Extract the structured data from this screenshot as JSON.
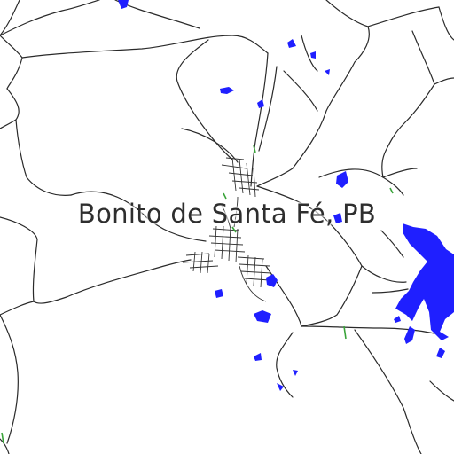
{
  "map": {
    "place_label": "Bonito de Santa Fé, PB",
    "colors": {
      "background": "#ffffff",
      "roads": "#2a2a2a",
      "water": "#1f1fff",
      "vegetation": "#3aa43a",
      "label": "#2e2e2e"
    }
  }
}
